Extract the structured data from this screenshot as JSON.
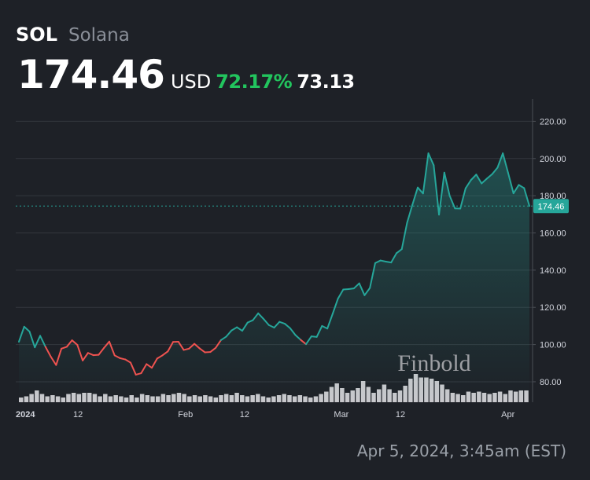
{
  "header": {
    "symbol": "SOL",
    "name": "Solana",
    "price": "174.46",
    "currency": "USD",
    "change_percent": "72.17%",
    "change_value": "73.13"
  },
  "timestamp": "Apr 5, 2024, 3:45am (EST)",
  "colors": {
    "up": "#26a69a",
    "down": "#ef5350",
    "volume": "#c8c8cc",
    "grid": "#33373e",
    "price_label_bg": "#26a69a"
  },
  "chart_data": {
    "type": "line",
    "title": "",
    "xlabel": "",
    "ylabel": "",
    "x_start": "2024-01-01",
    "x_end": "2024-04-05",
    "ylim": [
      69,
      232
    ],
    "y_ticks": [
      "80.00",
      "100.00",
      "120.00",
      "140.00",
      "160.00",
      "180.00",
      "200.00",
      "220.00"
    ],
    "x_ticks": [
      {
        "label": "2024",
        "date": "2024-01-01"
      },
      {
        "label": "12",
        "date": "2024-01-12"
      },
      {
        "label": "Feb",
        "date": "2024-02-01"
      },
      {
        "label": "12",
        "date": "2024-02-12"
      },
      {
        "label": "Mar",
        "date": "2024-03-01"
      },
      {
        "label": "12",
        "date": "2024-03-12"
      },
      {
        "label": "Apr",
        "date": "2024-04-01"
      }
    ],
    "current_price": 174.46,
    "current_price_label": "174.46",
    "grid": true,
    "series": [
      {
        "values": [
          101.5,
          109.6,
          107,
          98.5,
          104.7,
          98.8,
          93.5,
          89,
          97.8,
          98.8,
          102.3,
          99.8,
          91.4,
          95.5,
          94.3,
          94.5,
          98.2,
          101.6,
          94.2,
          92.7,
          92,
          90.3,
          83.8,
          84.6,
          89.5,
          87.5,
          92.5,
          94.2,
          96.3,
          101.4,
          101.5,
          97.1,
          97.8,
          100.4,
          97.9,
          95.8,
          96,
          98.2,
          102.4,
          104.3,
          107.6,
          109.3,
          107.4,
          111.8,
          113.1,
          116.8,
          113.8,
          110.5,
          109.1,
          112.2,
          111.2,
          108.8,
          105.1,
          102.5,
          100.2,
          104.4,
          104.1,
          110,
          108.6,
          116.5,
          124.7,
          129.6,
          129.8,
          130.2,
          132.9,
          126.5,
          130.4,
          143.8,
          145.2,
          144.6,
          144.1,
          149.1,
          151.3,
          165.5,
          175.2,
          184.4,
          181.2,
          202.8,
          196.4,
          169.8,
          192.4,
          180,
          173.2,
          173.1,
          184,
          188.4,
          191.4,
          186.6,
          189.2,
          191.6,
          195.1,
          202.8,
          192.2,
          181.3,
          185.8,
          184.1,
          174.46
        ]
      }
    ],
    "volume": [
      4,
      5,
      7,
      10,
      7,
      5,
      6,
      5,
      4,
      7,
      8,
      7,
      8,
      8,
      7,
      5,
      7,
      5,
      6,
      5,
      4,
      6,
      4,
      7,
      6,
      5,
      5,
      7,
      6,
      7,
      8,
      7,
      5,
      6,
      5,
      6,
      5,
      4,
      6,
      7,
      6,
      8,
      6,
      5,
      6,
      7,
      5,
      4,
      5,
      6,
      7,
      6,
      5,
      6,
      5,
      4,
      5,
      7,
      9,
      13,
      16,
      12,
      8,
      10,
      12,
      18,
      13,
      8,
      11,
      15,
      11,
      8,
      10,
      14,
      20,
      24,
      21,
      21,
      20,
      18,
      15,
      11,
      8,
      7,
      6,
      9,
      8,
      9,
      8,
      7,
      8,
      9,
      7,
      10,
      9,
      10,
      10
    ]
  },
  "watermark": "Finbold"
}
